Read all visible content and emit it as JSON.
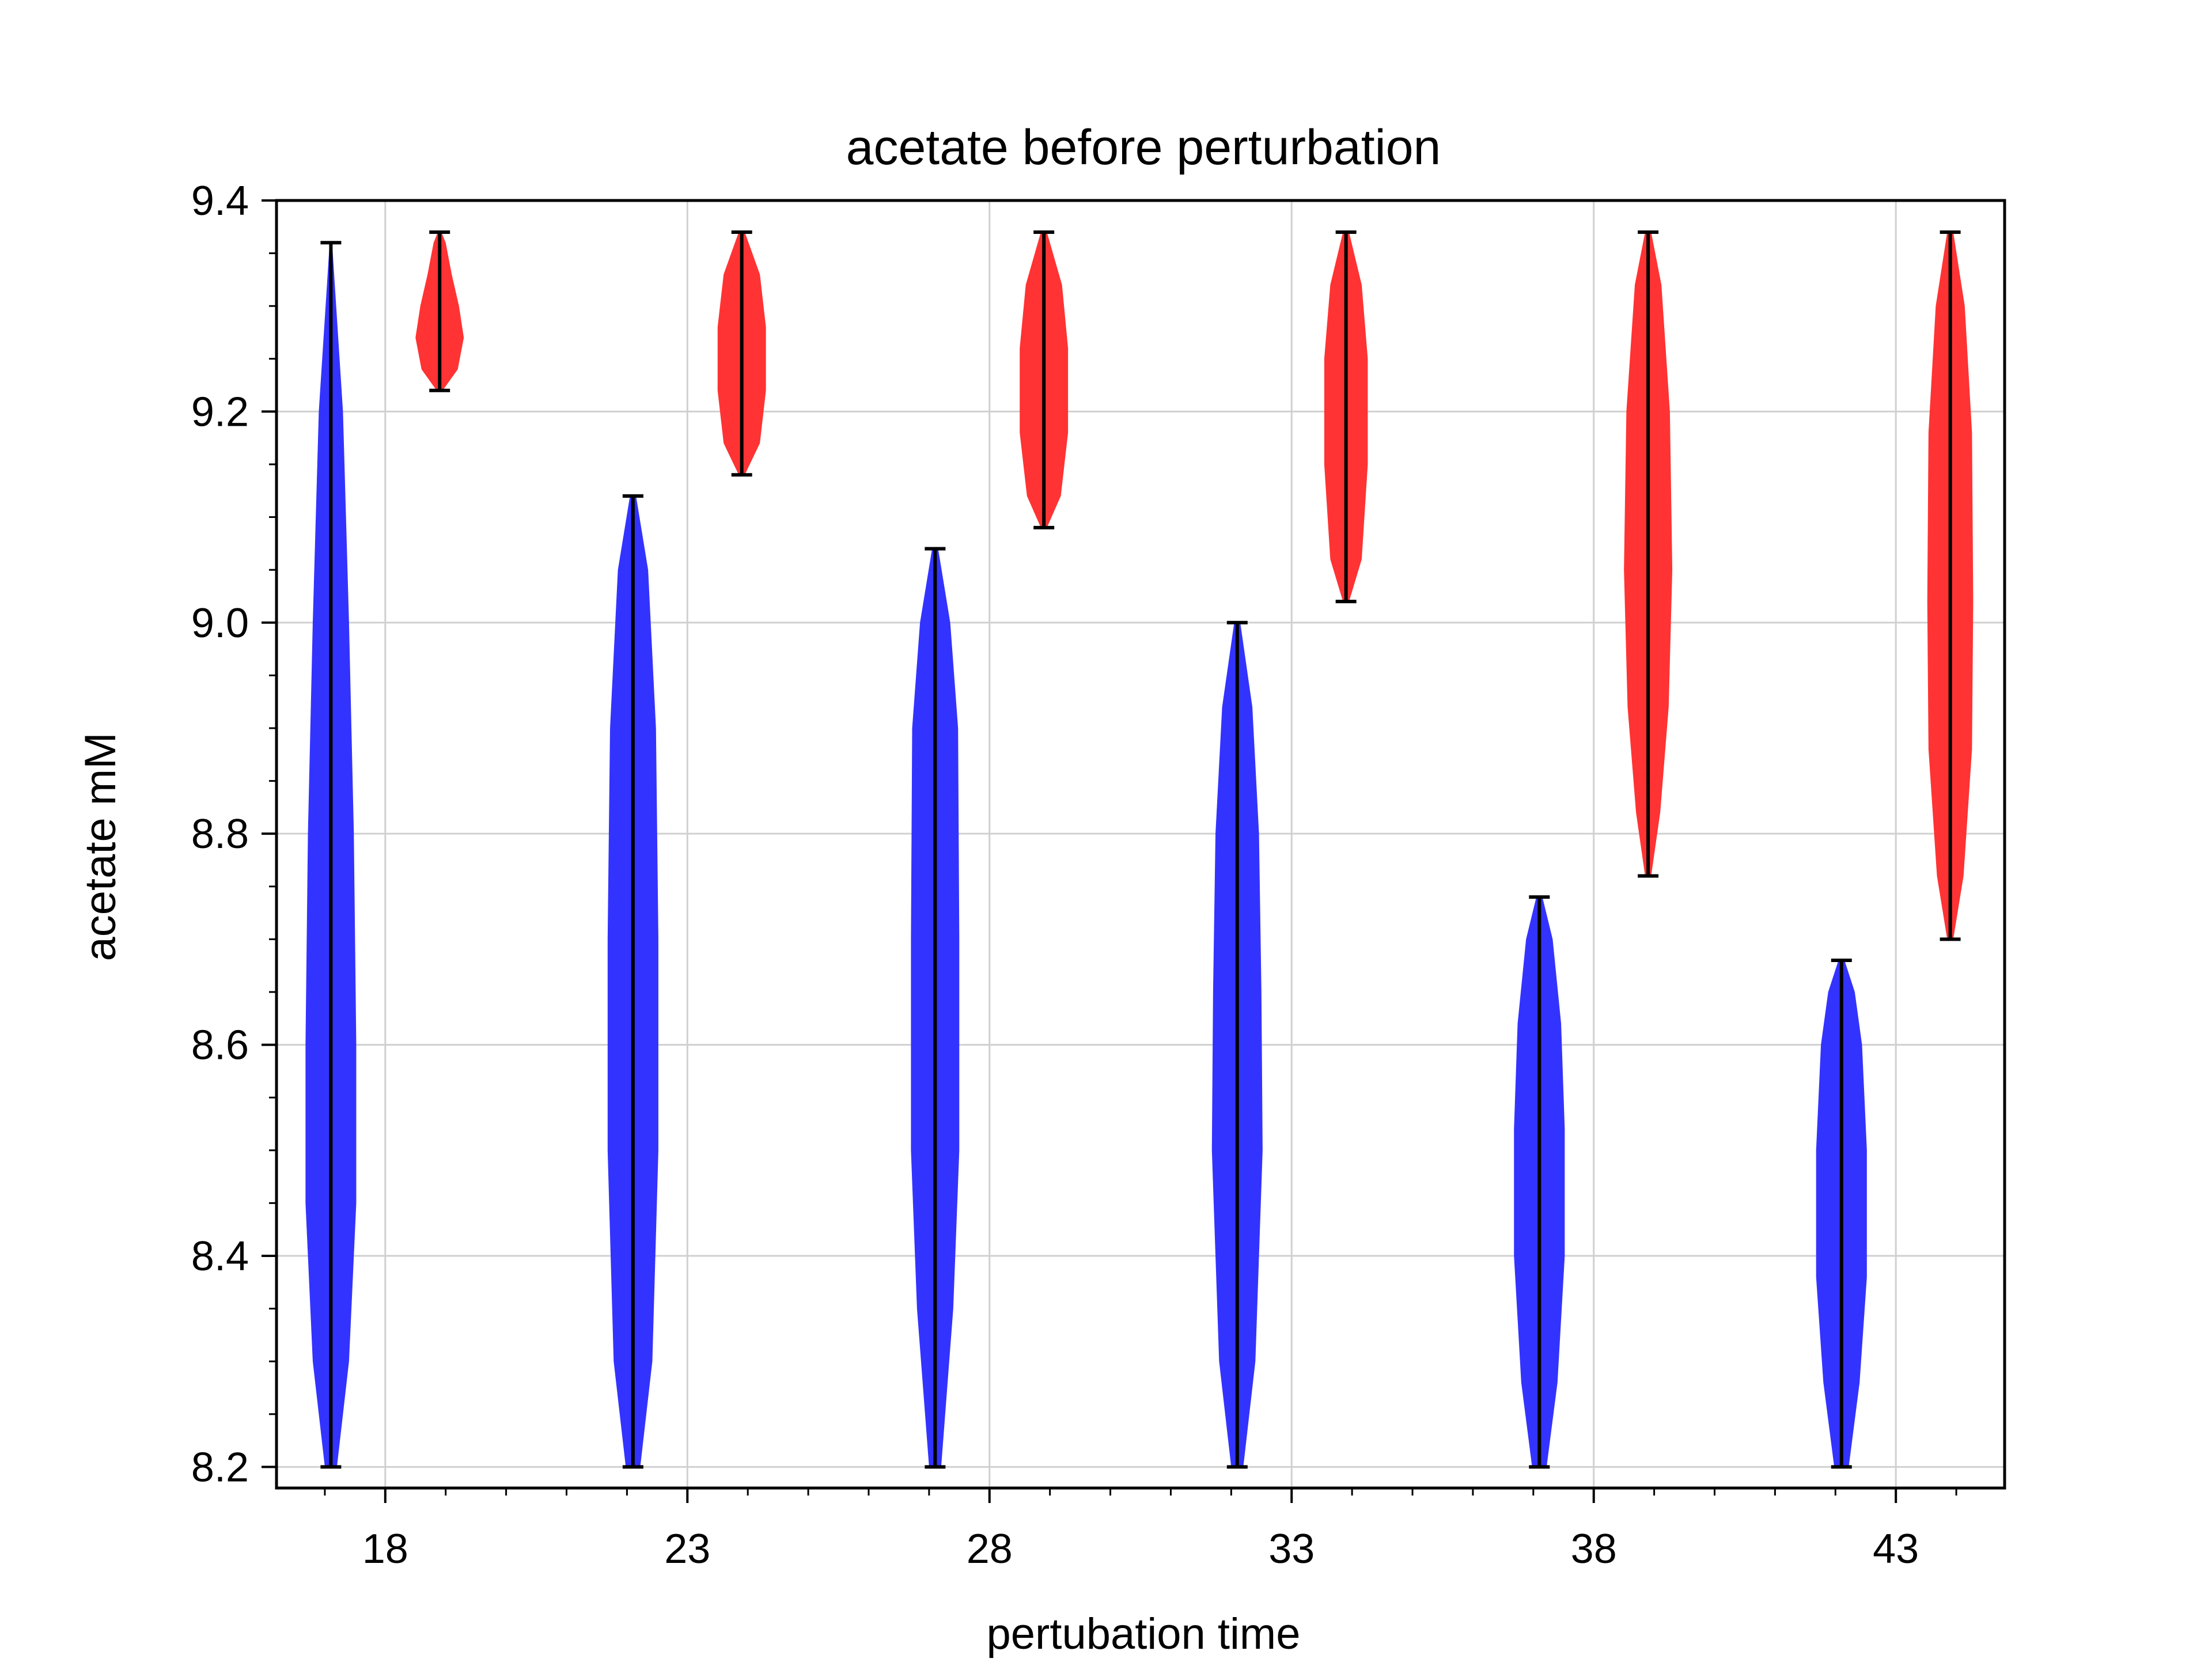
{
  "chart_data": {
    "type": "violin",
    "title": "acetate before perturbation",
    "xlabel": "pertubation time",
    "ylabel": "acetate mM",
    "xlim": [
      16.2,
      44.8
    ],
    "ylim": [
      8.18,
      9.4
    ],
    "xticks": [
      18,
      23,
      28,
      33,
      38,
      43
    ],
    "xtick_labels": [
      "18",
      "23",
      "28",
      "33",
      "38",
      "43"
    ],
    "yticks": [
      8.2,
      8.4,
      8.6,
      8.8,
      9.0,
      9.2,
      9.4
    ],
    "ytick_labels": [
      "8.2",
      "8.4",
      "8.6",
      "8.8",
      "9.0",
      "9.2",
      "9.4"
    ],
    "grid": true,
    "series": [
      {
        "color": "#3333ff",
        "violins": [
          {
            "x": 17.1,
            "min": 8.2,
            "max": 9.36,
            "profile": [
              [
                8.2,
                0.1
              ],
              [
                8.3,
                0.3
              ],
              [
                8.45,
                0.42
              ],
              [
                8.6,
                0.42
              ],
              [
                8.8,
                0.38
              ],
              [
                9.0,
                0.3
              ],
              [
                9.2,
                0.2
              ],
              [
                9.36,
                0.02
              ]
            ]
          },
          {
            "x": 22.1,
            "min": 8.2,
            "max": 9.12,
            "profile": [
              [
                8.2,
                0.12
              ],
              [
                8.3,
                0.32
              ],
              [
                8.5,
                0.42
              ],
              [
                8.7,
                0.42
              ],
              [
                8.9,
                0.38
              ],
              [
                9.05,
                0.25
              ],
              [
                9.12,
                0.05
              ]
            ]
          },
          {
            "x": 27.1,
            "min": 8.2,
            "max": 9.07,
            "profile": [
              [
                8.2,
                0.1
              ],
              [
                8.35,
                0.3
              ],
              [
                8.5,
                0.4
              ],
              [
                8.7,
                0.4
              ],
              [
                8.9,
                0.38
              ],
              [
                9.0,
                0.25
              ],
              [
                9.07,
                0.05
              ]
            ]
          },
          {
            "x": 32.1,
            "min": 8.2,
            "max": 9.0,
            "profile": [
              [
                8.2,
                0.1
              ],
              [
                8.3,
                0.3
              ],
              [
                8.5,
                0.42
              ],
              [
                8.65,
                0.4
              ],
              [
                8.8,
                0.36
              ],
              [
                8.92,
                0.25
              ],
              [
                9.0,
                0.05
              ]
            ]
          },
          {
            "x": 37.1,
            "min": 8.2,
            "max": 8.74,
            "profile": [
              [
                8.2,
                0.12
              ],
              [
                8.28,
                0.3
              ],
              [
                8.4,
                0.42
              ],
              [
                8.52,
                0.42
              ],
              [
                8.62,
                0.36
              ],
              [
                8.7,
                0.22
              ],
              [
                8.74,
                0.05
              ]
            ]
          },
          {
            "x": 42.1,
            "min": 8.2,
            "max": 8.68,
            "profile": [
              [
                8.2,
                0.12
              ],
              [
                8.28,
                0.3
              ],
              [
                8.38,
                0.42
              ],
              [
                8.5,
                0.42
              ],
              [
                8.6,
                0.34
              ],
              [
                8.65,
                0.22
              ],
              [
                8.68,
                0.05
              ]
            ]
          }
        ]
      },
      {
        "color": "#ff3333",
        "violins": [
          {
            "x": 18.9,
            "min": 9.22,
            "max": 9.37,
            "profile": [
              [
                9.22,
                0.05
              ],
              [
                9.24,
                0.3
              ],
              [
                9.27,
                0.4
              ],
              [
                9.3,
                0.32
              ],
              [
                9.33,
                0.2
              ],
              [
                9.36,
                0.1
              ],
              [
                9.37,
                0.03
              ]
            ]
          },
          {
            "x": 23.9,
            "min": 9.14,
            "max": 9.37,
            "profile": [
              [
                9.14,
                0.05
              ],
              [
                9.17,
                0.3
              ],
              [
                9.22,
                0.4
              ],
              [
                9.28,
                0.4
              ],
              [
                9.33,
                0.3
              ],
              [
                9.37,
                0.05
              ]
            ]
          },
          {
            "x": 28.9,
            "min": 9.09,
            "max": 9.37,
            "profile": [
              [
                9.09,
                0.05
              ],
              [
                9.12,
                0.28
              ],
              [
                9.18,
                0.4
              ],
              [
                9.26,
                0.4
              ],
              [
                9.32,
                0.3
              ],
              [
                9.37,
                0.05
              ]
            ]
          },
          {
            "x": 33.9,
            "min": 9.02,
            "max": 9.37,
            "profile": [
              [
                9.02,
                0.05
              ],
              [
                9.06,
                0.26
              ],
              [
                9.15,
                0.36
              ],
              [
                9.25,
                0.36
              ],
              [
                9.32,
                0.26
              ],
              [
                9.37,
                0.05
              ]
            ]
          },
          {
            "x": 38.9,
            "min": 8.76,
            "max": 9.37,
            "profile": [
              [
                8.76,
                0.05
              ],
              [
                8.82,
                0.2
              ],
              [
                8.92,
                0.34
              ],
              [
                9.05,
                0.4
              ],
              [
                9.2,
                0.36
              ],
              [
                9.32,
                0.22
              ],
              [
                9.37,
                0.05
              ]
            ]
          },
          {
            "x": 43.9,
            "min": 8.7,
            "max": 9.37,
            "profile": [
              [
                8.7,
                0.05
              ],
              [
                8.76,
                0.22
              ],
              [
                8.88,
                0.36
              ],
              [
                9.02,
                0.38
              ],
              [
                9.18,
                0.36
              ],
              [
                9.3,
                0.24
              ],
              [
                9.37,
                0.05
              ]
            ]
          }
        ]
      }
    ]
  }
}
